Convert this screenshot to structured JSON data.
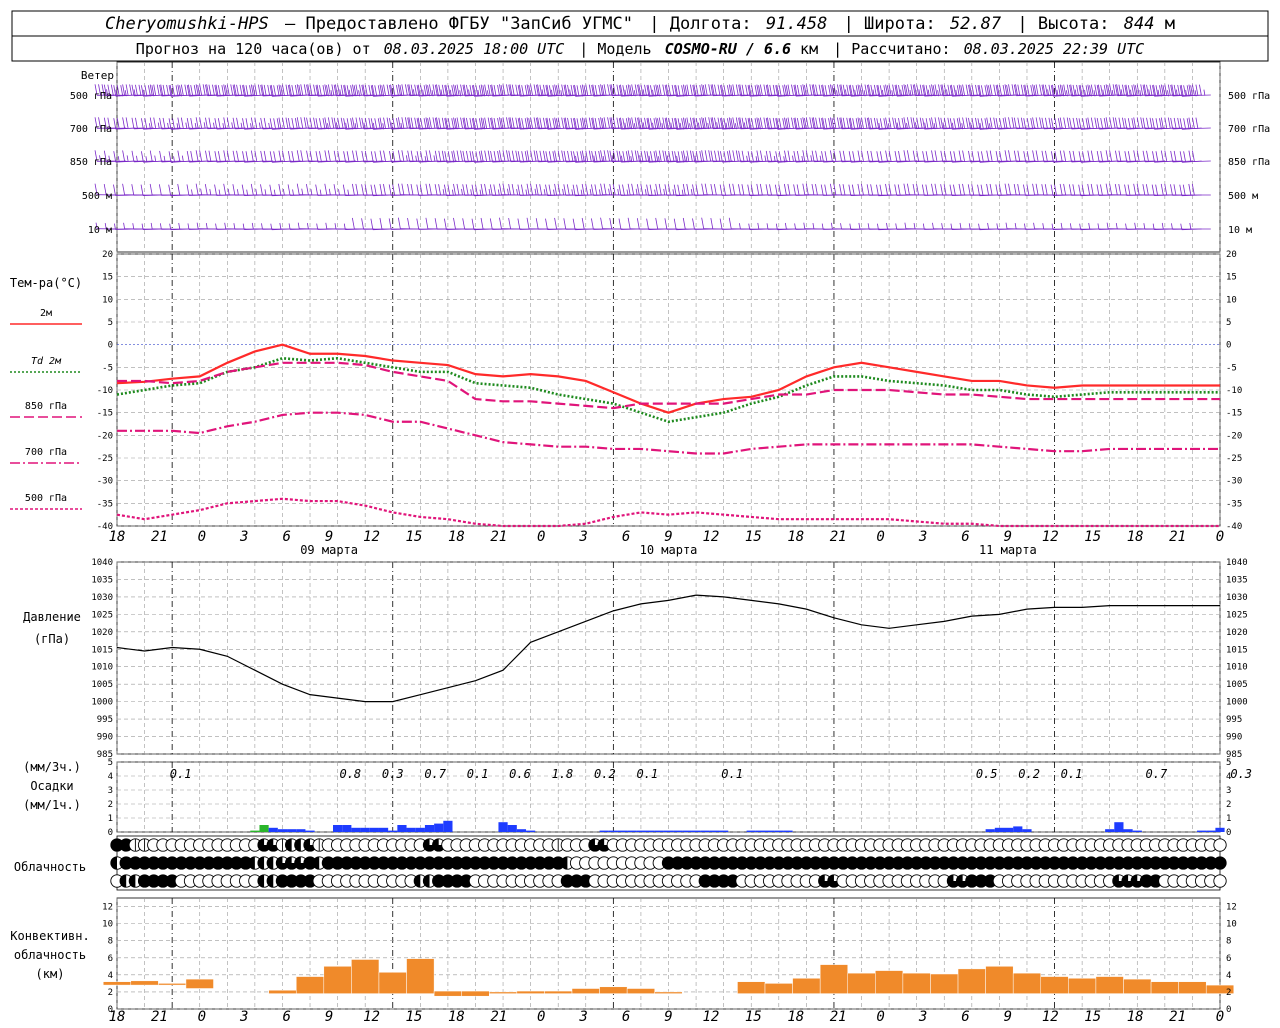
{
  "header": {
    "line1": {
      "station": "Cheryomushki-HPS",
      "provider": "– Предоставлено ФГБУ \"ЗапСиб УГМС\"",
      "lon_label": "| Долгота:",
      "lon_value": "91.458",
      "lat_label": "| Широта:",
      "lat_value": "52.87",
      "alt_label": "| Высота:",
      "alt_value": "844",
      "alt_unit": "м"
    },
    "line2": {
      "forecast_label": "Прогноз на 120 часа(ов) от",
      "forecast_time": "08.03.2025 18:00 UTC",
      "model_label": "| Модель",
      "model_name": "COSMO-RU / 6.6",
      "model_unit": "км",
      "calc_label": "| Рассчитано:",
      "calc_time": "08.03.2025 22:39 UTC"
    }
  },
  "x_ticks": [
    "18",
    "21",
    "0",
    "3",
    "6",
    "9",
    "12",
    "15",
    "18",
    "21",
    "0",
    "3",
    "6",
    "9",
    "12",
    "15",
    "18",
    "21",
    "0",
    "3",
    "6",
    "9",
    "12",
    "15",
    "18",
    "21",
    "0"
  ],
  "day_labels": [
    {
      "text": "09 марта",
      "slot": 5
    },
    {
      "text": "10 марта",
      "slot": 13
    },
    {
      "text": "11 марта",
      "slot": 21
    }
  ],
  "wind_panel": {
    "title": "Ветер",
    "levels": [
      "500 гПа",
      "700 гПа",
      "850 гПа",
      "500 м",
      "10  м"
    ],
    "right_levels": [
      "500 гПа",
      "700 гПа",
      "850 гПа",
      "500 м",
      "10  м"
    ],
    "barb_color": "#7a28c8"
  },
  "temp_panel": {
    "title": "Тем-ра(°С)",
    "legend": [
      {
        "label": "2м",
        "color": "#ff2a2a",
        "dash": "solid"
      },
      {
        "label": "Td  2м",
        "color": "#1e8a1e",
        "dash": "dotted"
      },
      {
        "label": "850 гПа",
        "color": "#e0147a",
        "dash": "dash"
      },
      {
        "label": "700 гПа",
        "color": "#e0147a",
        "dash": "dashdot"
      },
      {
        "label": "500 гПа",
        "color": "#e0147a",
        "dash": "dense"
      }
    ],
    "y_ticks": [
      "20",
      "15",
      "10",
      "5",
      "0",
      "-5",
      "-10",
      "-15",
      "-20",
      "-25",
      "-30",
      "-35",
      "-40"
    ]
  },
  "pressure_panel": {
    "title": "Давление",
    "unit": "(гПа)",
    "y_ticks": [
      "1040",
      "1035",
      "1030",
      "1025",
      "1020",
      "1015",
      "1010",
      "1005",
      "1000",
      "995",
      "990",
      "985"
    ]
  },
  "precip_panel": {
    "unit3": "(мм/3ч.)",
    "title": "Осадки",
    "unit1": "(мм/1ч.)",
    "y_ticks": [
      "5",
      "4",
      "3",
      "2",
      "1",
      "0"
    ],
    "totals": [
      {
        "text": "0.1",
        "slot": 1.5
      },
      {
        "text": "0.8",
        "slot": 5.5
      },
      {
        "text": "0.3",
        "slot": 6.5
      },
      {
        "text": "0.7",
        "slot": 7.5
      },
      {
        "text": "0.1",
        "slot": 8.5
      },
      {
        "text": "0.6",
        "slot": 9.5
      },
      {
        "text": "1.8",
        "slot": 10.5
      },
      {
        "text": "0.2",
        "slot": 11.5
      },
      {
        "text": "0.1",
        "slot": 12.5
      },
      {
        "text": "0.1",
        "slot": 14.5
      },
      {
        "text": "0.5",
        "slot": 20.5
      },
      {
        "text": "0.2",
        "slot": 21.5
      },
      {
        "text": "0.1",
        "slot": 22.5
      },
      {
        "text": "0.7",
        "slot": 24.5
      },
      {
        "text": "0.3",
        "slot": 26.5
      }
    ]
  },
  "cloud_panel": {
    "title": "Облачность",
    "rows": [
      "FFTTEEEEEEEEEEEEQQTHHQTEEEEEEEEEEEQQEEEEEEEEEEEETEEEQQEEEEEEEEEEEEEEEEEEEEEEEEEEEEEEEEEEEEEEEEEEEEEEEEEEEEEEEEEEEEEEEEEEE",
      "HFFFFFFFFFFFFFFHHHQQQFHFFFFFFFFFFFFFFFFFFFFFFFFFFHEEEEEEEEEEFFFFFFFFFFFFFFFFFFFFFFFFFFFFFFFFFFFFFFFFFFFFFFFFFFFFFFFFFFFFFFFFF",
      "EHHFFFFEEEEEEEEEHHFFFFEEEEEEEEEEEHHFFFFEEEEEEEEEEFFFEEEEEEEEEEEEFFFFEEEEEEEEEQQEEEEEEEEEEEEQQFFFEEEEEEEEEEEEEQQQFFEEEEEEEEEEFFF"
    ]
  },
  "conv_panel": {
    "title1": "Конвективн.",
    "title2": "облачность",
    "unit": "(км)",
    "y_ticks": [
      "12",
      "10",
      "8",
      "6",
      "4",
      "2",
      "0"
    ]
  },
  "chart_data": [
    {
      "type": "wind_barbs",
      "x_hours_from_start": [
        0,
        120
      ],
      "levels": [
        "500 гПа",
        "700 гПа",
        "850 гПа",
        "500 м",
        "10 м"
      ],
      "note_speed_bands_ms": {
        "500 гПа": [
          18,
          20,
          20,
          20,
          22,
          24,
          26,
          28,
          28,
          26,
          24,
          26,
          28,
          30,
          32,
          32,
          30,
          28,
          28,
          28,
          26,
          26,
          24,
          24,
          24,
          24,
          24
        ],
        "700 гПа": [
          12,
          14,
          14,
          14,
          16,
          18,
          18,
          20,
          22,
          20,
          20,
          22,
          24,
          24,
          24,
          22,
          20,
          20,
          18,
          18,
          18,
          16,
          16,
          16,
          16,
          16,
          16
        ],
        "850 гПа": [
          8,
          8,
          10,
          10,
          10,
          10,
          12,
          14,
          16,
          16,
          16,
          18,
          18,
          18,
          16,
          14,
          14,
          12,
          12,
          12,
          12,
          12,
          12,
          12,
          12,
          12,
          12
        ],
        "500 м": [
          6,
          6,
          8,
          8,
          8,
          8,
          10,
          12,
          14,
          14,
          14,
          14,
          14,
          14,
          12,
          12,
          10,
          10,
          10,
          10,
          10,
          10,
          10,
          10,
          10,
          10,
          10
        ],
        "10 м": [
          4,
          4,
          4,
          4,
          4,
          4,
          6,
          6,
          6,
          6,
          6,
          6,
          6,
          6,
          6,
          4,
          4,
          4,
          4,
          4,
          4,
          4,
          4,
          4,
          4,
          4,
          4
        ]
      }
    },
    {
      "type": "line",
      "title": "Тем-ра(°С)",
      "x": [
        0,
        3,
        6,
        9,
        12,
        15,
        18,
        21,
        24,
        27,
        30,
        33,
        36,
        39,
        42,
        45,
        48,
        51,
        54,
        57,
        60,
        63,
        66,
        69,
        72,
        75,
        78,
        81,
        84,
        87,
        90,
        93,
        96,
        99,
        102,
        105,
        108,
        111,
        114,
        117,
        120
      ],
      "ylim": [
        -40,
        20
      ],
      "series": [
        {
          "name": "2м",
          "values": [
            -8.5,
            -8.2,
            -7.5,
            -7,
            -4,
            -1.5,
            0,
            -2,
            -2,
            -2.5,
            -3.5,
            -4,
            -4.5,
            -6.5,
            -7,
            -6.5,
            -7,
            -8,
            -10.5,
            -13,
            -15,
            -13,
            -12,
            -11.5,
            -10,
            -7,
            -5,
            -4,
            -5,
            -6,
            -7,
            -8,
            -8,
            -9,
            -9.5,
            -9,
            -9,
            -9,
            -9,
            -9,
            -9
          ]
        },
        {
          "name": "Td  2м",
          "values": [
            -11,
            -10,
            -9,
            -8.5,
            -6,
            -5,
            -3,
            -3.5,
            -3,
            -4,
            -5,
            -6,
            -6,
            -8.5,
            -9,
            -9.5,
            -11,
            -12,
            -13,
            -15,
            -17,
            -16,
            -15,
            -13,
            -11.5,
            -9,
            -7,
            -7,
            -8,
            -8.5,
            -9,
            -10,
            -10,
            -11,
            -11.5,
            -11,
            -10.5,
            -10.5,
            -10.5,
            -10.5,
            -10.5
          ]
        },
        {
          "name": "850 гПа",
          "values": [
            -8,
            -8,
            -8.5,
            -8,
            -6,
            -5,
            -4,
            -4,
            -4,
            -4.5,
            -6,
            -7,
            -8,
            -12,
            -12.5,
            -12.5,
            -13,
            -13.5,
            -14,
            -13,
            -13,
            -13,
            -13,
            -12,
            -11,
            -11,
            -10,
            -10,
            -10,
            -10.5,
            -11,
            -11,
            -11.5,
            -12,
            -12,
            -12,
            -12,
            -12,
            -12,
            -12,
            -12
          ]
        },
        {
          "name": "700 гПа",
          "values": [
            -19,
            -19,
            -19,
            -19.5,
            -18,
            -17,
            -15.5,
            -15,
            -15,
            -15.5,
            -17,
            -17,
            -18.5,
            -20,
            -21.5,
            -22,
            -22.5,
            -22.5,
            -23,
            -23,
            -23.5,
            -24,
            -24,
            -23,
            -22.5,
            -22,
            -22,
            -22,
            -22,
            -22,
            -22,
            -22,
            -22.5,
            -23,
            -23.5,
            -23.5,
            -23,
            -23,
            -23,
            -23,
            -23
          ]
        },
        {
          "name": "500 гПа",
          "values": [
            -37.5,
            -38.5,
            -37.5,
            -36.5,
            -35,
            -34.5,
            -34,
            -34.5,
            -34.5,
            -35.5,
            -37,
            -38,
            -38.5,
            -39.5,
            -40,
            -40,
            -40,
            -39.5,
            -38,
            -37,
            -37.5,
            -37,
            -37.5,
            -38,
            -38.5,
            -38.5,
            -38.5,
            -38.5,
            -38.5,
            -39,
            -39.5,
            -39.5,
            -40,
            -40,
            -40,
            -40,
            -40,
            -40,
            -40,
            -40,
            -40
          ]
        }
      ]
    },
    {
      "type": "line",
      "title": "Давление",
      "ylabel": "(гПа)",
      "ylim": [
        985,
        1040
      ],
      "x": [
        0,
        3,
        6,
        9,
        12,
        15,
        18,
        21,
        24,
        27,
        30,
        33,
        36,
        39,
        42,
        45,
        48,
        51,
        54,
        57,
        60,
        63,
        66,
        69,
        72,
        75,
        78,
        81,
        84,
        87,
        90,
        93,
        96,
        99,
        102,
        105,
        108,
        111,
        114,
        117,
        120
      ],
      "values": [
        1015.5,
        1014.5,
        1015.5,
        1015,
        1013,
        1009,
        1005,
        1002,
        1001,
        1000,
        1000,
        1002,
        1004,
        1006,
        1009,
        1017,
        1020,
        1023,
        1026,
        1028,
        1029,
        1030.5,
        1030,
        1029,
        1028,
        1026.5,
        1024,
        1022,
        1021,
        1022,
        1023,
        1024.5,
        1025,
        1026.5,
        1027,
        1027,
        1027.5,
        1027.5,
        1027.5,
        1027.5,
        1027.5
      ]
    },
    {
      "type": "bar",
      "title": "Осадки",
      "ylabel": "(мм/1ч.)",
      "ylim": [
        0,
        5
      ],
      "x_hours": [
        15,
        16,
        17,
        18,
        19,
        20,
        21,
        24,
        25,
        26,
        27,
        28,
        29,
        30,
        31,
        32,
        33,
        34,
        35,
        36,
        42,
        43,
        44,
        45,
        53,
        54,
        55,
        56,
        57,
        58,
        59,
        60,
        61,
        62,
        63,
        64,
        65,
        66,
        69,
        70,
        71,
        72,
        73,
        95,
        96,
        97,
        98,
        99,
        108,
        109,
        110,
        111,
        118,
        119,
        120
      ],
      "values": [
        0.1,
        0.5,
        0.3,
        0.2,
        0.2,
        0.2,
        0.1,
        0.5,
        0.5,
        0.3,
        0.3,
        0.3,
        0.3,
        0.1,
        0.5,
        0.3,
        0.3,
        0.5,
        0.6,
        0.8,
        0.7,
        0.5,
        0.2,
        0.1,
        0.1,
        0.1,
        0.1,
        0.1,
        0.1,
        0.1,
        0.1,
        0.1,
        0.1,
        0.1,
        0.1,
        0.1,
        0.1,
        0.1,
        0.1,
        0.1,
        0.1,
        0.1,
        0.1,
        0.2,
        0.3,
        0.3,
        0.4,
        0.2,
        0.2,
        0.7,
        0.2,
        0.1,
        0.1,
        0.1,
        0.3
      ],
      "special_green_hours": [
        15,
        16
      ]
    },
    {
      "type": "bar",
      "title": "Конвективн. облачность",
      "ylabel": "(км)",
      "ylim": [
        0,
        13
      ],
      "x_hours": [
        0,
        3,
        6,
        9,
        12,
        15,
        18,
        21,
        24,
        27,
        30,
        33,
        36,
        39,
        42,
        45,
        48,
        51,
        54,
        57,
        60,
        63,
        66,
        69,
        72,
        75,
        78,
        81,
        84,
        87,
        90,
        93,
        96,
        99,
        102,
        105,
        108,
        111,
        114,
        117,
        120
      ],
      "bottoms": [
        2.8,
        2.8,
        2.8,
        2.4,
        0,
        0,
        1.8,
        1.8,
        1.8,
        1.8,
        1.8,
        1.8,
        1.5,
        1.5,
        1.8,
        1.8,
        1.8,
        1.8,
        1.8,
        1.8,
        1.8,
        1.8,
        1.8,
        1.8,
        1.8,
        1.8,
        1.8,
        1.8,
        1.8,
        1.8,
        1.8,
        1.8,
        1.8,
        1.8,
        1.8,
        1.8,
        1.8,
        1.8,
        1.8,
        1.8,
        1.8
      ],
      "tops": [
        3.2,
        3.3,
        3,
        3.5,
        0,
        0,
        2.2,
        3.8,
        5,
        5.8,
        4.3,
        5.9,
        2.1,
        2.1,
        2,
        2.1,
        2.1,
        2.4,
        2.6,
        2.4,
        2,
        0,
        0,
        3.2,
        3,
        3.6,
        5.2,
        4.2,
        4.5,
        4.2,
        4.1,
        4.7,
        5,
        4.2,
        3.8,
        3.6,
        3.8,
        3.5,
        3.2,
        3.2,
        2.8
      ]
    }
  ]
}
